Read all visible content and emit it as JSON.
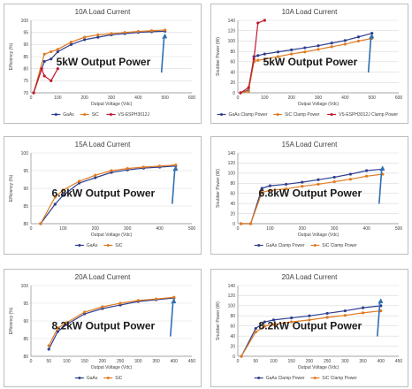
{
  "colors": {
    "gaas": "#2f3f8f",
    "sic": "#e07b20",
    "vs": "#c0192c",
    "arrow": "#2f6fb0"
  },
  "chart_data": [
    {
      "type": "line",
      "title": "10A Load Current",
      "xlabel": "Output Voltage (Vdc)",
      "ylabel": "Efficiency (%)",
      "xlim": [
        0,
        600
      ],
      "ylim": [
        70,
        100
      ],
      "xticks": [
        "0",
        "100",
        "200",
        "300",
        "400",
        "500",
        "600"
      ],
      "yticks": [
        "70",
        "75",
        "80",
        "85",
        "90",
        "95",
        "100"
      ],
      "annotation": "5kW Output Power",
      "grid": true,
      "legend_position": "bottom",
      "series": [
        {
          "name": "GaAs",
          "color": "#2f3f8f",
          "x": [
            10,
            50,
            75,
            100,
            150,
            200,
            250,
            300,
            350,
            400,
            450,
            500
          ],
          "y": [
            70,
            83,
            84,
            87,
            90,
            92,
            93,
            94,
            94.5,
            95,
            95.3,
            95.5
          ]
        },
        {
          "name": "SiC",
          "color": "#e07b20",
          "x": [
            10,
            50,
            75,
            100,
            150,
            200,
            250,
            300,
            350,
            400,
            450,
            500
          ],
          "y": [
            70,
            86,
            87,
            88,
            91,
            93,
            94,
            94.5,
            95,
            95.4,
            95.7,
            96
          ]
        },
        {
          "name": "VS-ESPH3012J",
          "color": "#c0192c",
          "x": [
            10,
            40,
            50,
            75,
            100
          ],
          "y": [
            70,
            80,
            77,
            75,
            80
          ]
        }
      ]
    },
    {
      "type": "line",
      "title": "10A Load Current",
      "xlabel": "Output Voltage (Vdc)",
      "ylabel": "Snubber Power (W)",
      "xlim": [
        0,
        600
      ],
      "ylim": [
        0,
        140
      ],
      "xticks": [
        "0",
        "100",
        "200",
        "300",
        "400",
        "500",
        "600"
      ],
      "yticks": [
        "0",
        "20",
        "40",
        "60",
        "80",
        "100",
        "120",
        "140"
      ],
      "annotation": "5kW Output Power",
      "grid": true,
      "legend_position": "bottom",
      "series": [
        {
          "name": "GaAs Clamp Power",
          "color": "#2f3f8f",
          "x": [
            10,
            40,
            60,
            75,
            100,
            150,
            200,
            250,
            300,
            350,
            400,
            450,
            500
          ],
          "y": [
            0,
            5,
            70,
            72,
            75,
            79,
            83,
            87,
            91,
            96,
            101,
            108,
            115
          ]
        },
        {
          "name": "SiC Clamp Power",
          "color": "#e07b20",
          "x": [
            10,
            40,
            60,
            75,
            100,
            150,
            200,
            250,
            300,
            350,
            400,
            450,
            500
          ],
          "y": [
            0,
            3,
            60,
            63,
            65,
            70,
            75,
            79,
            84,
            89,
            94,
            100,
            105
          ]
        },
        {
          "name": "VS-ESPH3012J Clamp Power",
          "color": "#c0192c",
          "x": [
            10,
            40,
            60,
            75,
            100
          ],
          "y": [
            0,
            10,
            65,
            135,
            140
          ]
        }
      ]
    },
    {
      "type": "line",
      "title": "15A Load Current",
      "xlabel": "Output Voltage (Vdc)",
      "ylabel": "Efficiency (%)",
      "xlim": [
        0,
        500
      ],
      "ylim": [
        80,
        100
      ],
      "xticks": [
        "0",
        "100",
        "200",
        "300",
        "400",
        "500"
      ],
      "yticks": [
        "80",
        "85",
        "90",
        "95",
        "100"
      ],
      "annotation": "6.8kW Output Power",
      "grid": true,
      "legend_position": "bottom",
      "series": [
        {
          "name": "GaAs",
          "color": "#2f3f8f",
          "x": [
            30,
            75,
            100,
            150,
            200,
            250,
            300,
            350,
            400,
            450
          ],
          "y": [
            80,
            85.5,
            88,
            91.5,
            93,
            94.5,
            95.2,
            95.7,
            96,
            96.3
          ]
        },
        {
          "name": "SiC",
          "color": "#e07b20",
          "x": [
            30,
            75,
            100,
            150,
            200,
            250,
            300,
            350,
            400,
            450
          ],
          "y": [
            80,
            87.5,
            89.5,
            92,
            93.7,
            95,
            95.6,
            96,
            96.3,
            96.6
          ]
        }
      ]
    },
    {
      "type": "line",
      "title": "15A Load Current",
      "xlabel": "Output Voltage (Vdc)",
      "ylabel": "Snubber Power (W)",
      "xlim": [
        0,
        500
      ],
      "ylim": [
        0,
        140
      ],
      "xticks": [
        "0",
        "100",
        "200",
        "300",
        "400",
        "500"
      ],
      "yticks": [
        "0",
        "20",
        "40",
        "60",
        "80",
        "100",
        "120",
        "140"
      ],
      "annotation": "6.8kW Output Power",
      "grid": true,
      "legend_position": "bottom",
      "series": [
        {
          "name": "GaAs Clamp Power",
          "color": "#2f3f8f",
          "x": [
            10,
            40,
            75,
            100,
            150,
            200,
            250,
            300,
            350,
            400,
            450
          ],
          "y": [
            0,
            0,
            70,
            75,
            78,
            82,
            87,
            92,
            98,
            105,
            108
          ]
        },
        {
          "name": "SiC Clamp Power",
          "color": "#e07b20",
          "x": [
            10,
            40,
            75,
            100,
            150,
            200,
            250,
            300,
            350,
            400,
            450
          ],
          "y": [
            0,
            0,
            62,
            66,
            69,
            74,
            78,
            83,
            88,
            94,
            98
          ]
        }
      ]
    },
    {
      "type": "line",
      "title": "20A Load Current",
      "xlabel": "Output Voltage (Vdc)",
      "ylabel": "Efficiency (%)",
      "xlim": [
        0,
        450
      ],
      "ylim": [
        80,
        100
      ],
      "xticks": [
        "0",
        "50",
        "100",
        "150",
        "200",
        "250",
        "300",
        "350",
        "400",
        "450"
      ],
      "yticks": [
        "80",
        "85",
        "90",
        "95",
        "100"
      ],
      "annotation": "8.2kW Output Power",
      "grid": true,
      "legend_position": "bottom",
      "series": [
        {
          "name": "GaAs",
          "color": "#2f3f8f",
          "x": [
            50,
            75,
            100,
            150,
            200,
            250,
            300,
            350,
            400
          ],
          "y": [
            82,
            87,
            89,
            92,
            93.5,
            94.5,
            95.5,
            96,
            96.5
          ]
        },
        {
          "name": "SiC",
          "color": "#e07b20",
          "x": [
            50,
            75,
            100,
            150,
            200,
            250,
            300,
            350,
            400
          ],
          "y": [
            83,
            88,
            89.5,
            92.5,
            94,
            95,
            95.8,
            96.2,
            96.7
          ]
        }
      ]
    },
    {
      "type": "line",
      "title": "20A Load Current",
      "xlabel": "Output Voltage (Vdc)",
      "ylabel": "Snubber Power (W)",
      "xlim": [
        0,
        450
      ],
      "ylim": [
        0,
        140
      ],
      "xticks": [
        "0",
        "50",
        "100",
        "150",
        "200",
        "250",
        "300",
        "350",
        "400",
        "450"
      ],
      "yticks": [
        "0",
        "20",
        "40",
        "60",
        "80",
        "100",
        "120",
        "140"
      ],
      "annotation": "8.2kW Output Power",
      "grid": true,
      "legend_position": "bottom",
      "series": [
        {
          "name": "GaAs Clamp Power",
          "color": "#2f3f8f",
          "x": [
            10,
            50,
            75,
            100,
            150,
            200,
            250,
            300,
            350,
            400
          ],
          "y": [
            0,
            55,
            68,
            72,
            76,
            80,
            85,
            90,
            96,
            100
          ]
        },
        {
          "name": "SiC Clamp Power",
          "color": "#e07b20",
          "x": [
            10,
            50,
            75,
            100,
            150,
            200,
            250,
            300,
            350,
            400
          ],
          "y": [
            0,
            48,
            60,
            63,
            68,
            72,
            77,
            81,
            86,
            90
          ]
        }
      ]
    }
  ]
}
